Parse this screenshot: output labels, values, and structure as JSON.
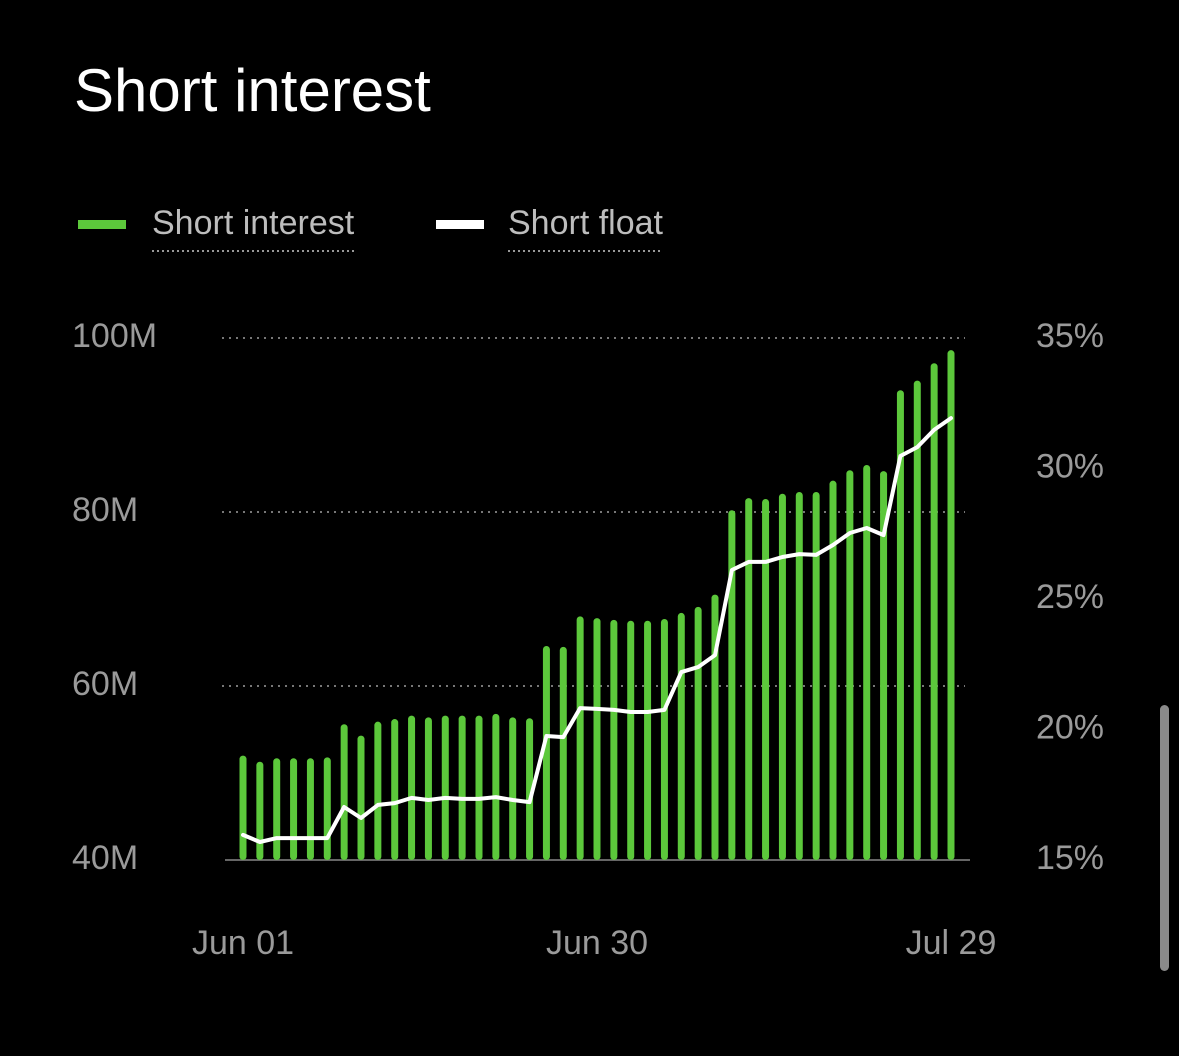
{
  "chart_data": {
    "type": "bar-line",
    "title": "Short interest",
    "categories": [
      "Jun 01",
      null,
      null,
      null,
      null,
      null,
      null,
      null,
      null,
      null,
      null,
      null,
      null,
      null,
      null,
      null,
      null,
      null,
      null,
      null,
      null,
      "Jun 30",
      null,
      null,
      null,
      null,
      null,
      null,
      null,
      null,
      null,
      null,
      null,
      null,
      null,
      null,
      null,
      null,
      null,
      null,
      null,
      null,
      "Jul 29"
    ],
    "series": [
      {
        "name": "Short interest",
        "color": "#5cc83b",
        "type": "bar",
        "values": [
          52.0,
          51.3,
          51.7,
          51.7,
          51.7,
          51.8,
          55.6,
          54.3,
          55.9,
          56.2,
          56.6,
          56.4,
          56.6,
          56.6,
          56.6,
          56.8,
          56.4,
          56.3,
          64.6,
          64.5,
          68.0,
          67.8,
          67.6,
          67.5,
          67.5,
          67.7,
          68.4,
          69.1,
          70.5,
          80.2,
          81.6,
          81.5,
          82.1,
          82.3,
          82.3,
          83.6,
          84.8,
          85.4,
          84.7,
          94.0,
          95.1,
          97.1,
          98.6
        ]
      },
      {
        "name": "Short float",
        "color": "#ffffff",
        "type": "line",
        "axis": "y2",
        "values": [
          15.96,
          15.69,
          15.84,
          15.84,
          15.84,
          15.84,
          17.03,
          16.61,
          17.11,
          17.18,
          17.38,
          17.3,
          17.38,
          17.34,
          17.34,
          17.41,
          17.3,
          17.22,
          19.75,
          19.71,
          20.82,
          20.79,
          20.75,
          20.67,
          20.67,
          20.75,
          22.2,
          22.39,
          22.85,
          26.11,
          26.42,
          26.42,
          26.61,
          26.72,
          26.69,
          27.07,
          27.53,
          27.72,
          27.45,
          30.48,
          30.82,
          31.48,
          31.93
        ]
      }
    ],
    "ylim": [
      40,
      100
    ],
    "yticks": [
      {
        "value": 40,
        "label": "40M"
      },
      {
        "value": 60,
        "label": "60M"
      },
      {
        "value": 80,
        "label": "80M"
      },
      {
        "value": 100,
        "label": "100M"
      }
    ],
    "y2lim": [
      15,
      35
    ],
    "y2ticks": [
      {
        "value": 15,
        "label": "15%"
      },
      {
        "value": 20,
        "label": "20%"
      },
      {
        "value": 25,
        "label": "25%"
      },
      {
        "value": 30,
        "label": "30%"
      },
      {
        "value": 35,
        "label": "35%"
      }
    ],
    "grid": true
  }
}
